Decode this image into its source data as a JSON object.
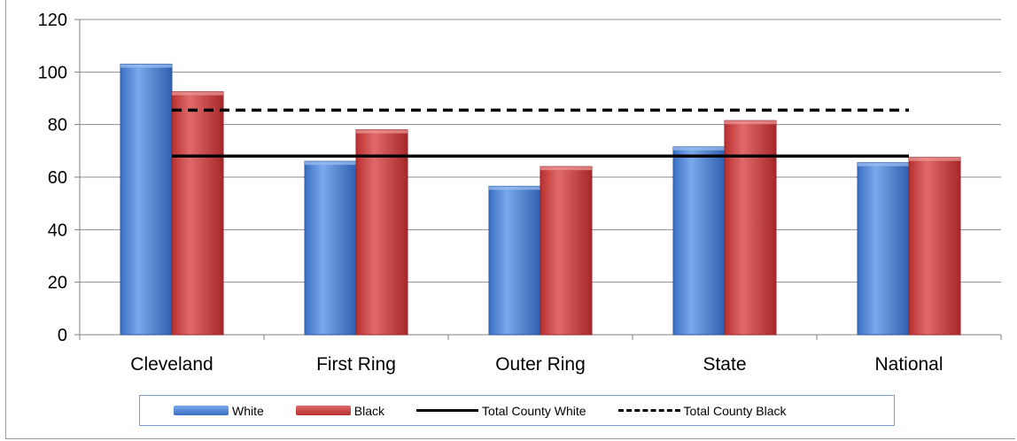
{
  "chart_data": {
    "type": "bar",
    "categories": [
      "Cleveland",
      "First Ring",
      "Outer Ring",
      "State",
      "National"
    ],
    "series": [
      {
        "name": "White",
        "values": [
          103,
          66,
          56.5,
          71.5,
          65.5
        ],
        "color": "#4a7fd0"
      },
      {
        "name": "Black",
        "values": [
          92.5,
          78,
          64,
          81.5,
          67.5
        ],
        "color": "#c83a3a"
      }
    ],
    "reference_lines": [
      {
        "name": "Total County White",
        "value": 68,
        "style": "solid",
        "color": "#000000"
      },
      {
        "name": "Total County Black",
        "value": 85.5,
        "style": "dashed",
        "color": "#000000"
      }
    ],
    "y_ticks": [
      "0",
      "20",
      "40",
      "60",
      "80",
      "100",
      "120"
    ],
    "ylim": [
      0,
      120
    ],
    "grid": true,
    "legend_position": "bottom",
    "title": "",
    "xlabel": "",
    "ylabel": ""
  },
  "legend": {
    "items": [
      {
        "label": "White",
        "kind": "bar",
        "color": "#4a7fd0"
      },
      {
        "label": "Black",
        "kind": "bar",
        "color": "#c83a3a"
      },
      {
        "label": "Total County White",
        "kind": "solid-line",
        "color": "#000000"
      },
      {
        "label": "Total County Black",
        "kind": "dashed-line",
        "color": "#000000"
      }
    ]
  }
}
